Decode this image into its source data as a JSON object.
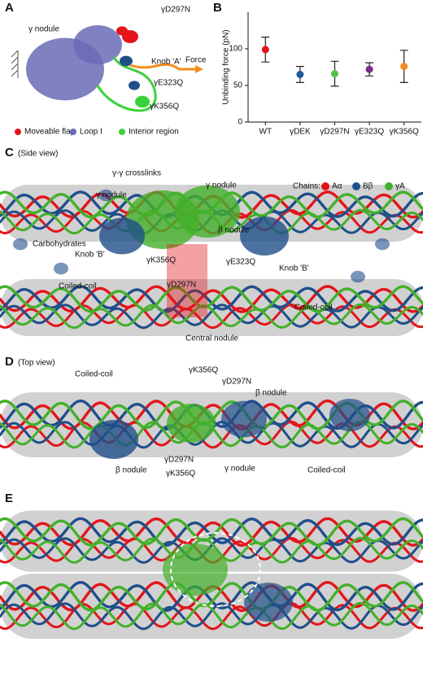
{
  "panel_a": {
    "letter": "A",
    "labels": [
      "γ nodule",
      "γD297N",
      "Knob 'A'",
      "Force",
      "γE323Q",
      "γK356Q"
    ],
    "legend": [
      {
        "name": "Moveable flap",
        "color": "#e3151b"
      },
      {
        "name": "Loop I",
        "color": "#6a6bb5"
      },
      {
        "name": "Interior region",
        "color": "#3cd13a"
      }
    ]
  },
  "panel_b": {
    "letter": "B"
  },
  "chart_data": {
    "type": "errorbar",
    "y_label": "Unbinding force (pN)",
    "categories": [
      "WT",
      "γDEK",
      "γD297N",
      "γE323Q",
      "γK356Q"
    ],
    "values": [
      99,
      65,
      66,
      72,
      76
    ],
    "errors": [
      17,
      11,
      17,
      9,
      22
    ],
    "colors": [
      "#e3151b",
      "#1f5a99",
      "#52c44a",
      "#7a2c8a",
      "#f28c1c"
    ],
    "ylim": [
      0,
      150
    ],
    "yticks": [
      0,
      50,
      100
    ]
  },
  "panel_c": {
    "letter": "C",
    "subtitle": "(Side view)",
    "legend_title": "Chains:",
    "chains": [
      {
        "name": "Aα",
        "color": "#e3151b"
      },
      {
        "name": "Bβ",
        "color": "#1f4f8a"
      },
      {
        "name": "γA",
        "color": "#43b02a"
      }
    ],
    "labels": [
      "γ-γ crosslinks",
      "γ nodule",
      "γ nodule",
      "Carbohydrates",
      "Knob 'B'",
      "γK356Q",
      "γE323Q",
      "β nodule",
      "Knob 'B'",
      "Coiled-coil",
      "γD297N",
      "Central nodule",
      "Coiled-coil"
    ]
  },
  "panel_d": {
    "letter": "D",
    "subtitle": "(Top view)",
    "labels": [
      "Coiled-coil",
      "γK356Q",
      "γD297N",
      "β nodule",
      "β nodule",
      "γD297N",
      "γK356Q",
      "γ nodule",
      "Coiled-coil"
    ]
  },
  "panel_e": {
    "letter": "E"
  }
}
